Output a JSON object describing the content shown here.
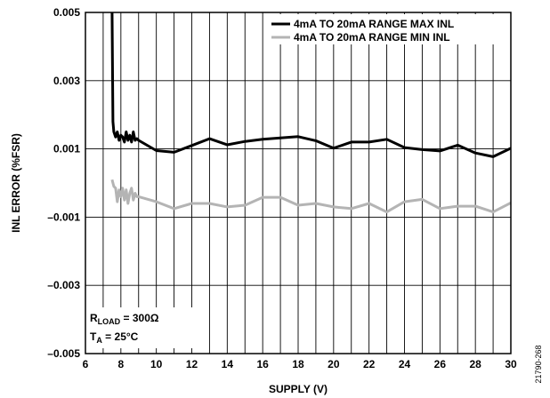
{
  "chart_data": {
    "type": "line",
    "xlabel": "SUPPLY (V)",
    "ylabel": "INL ERROR (%FSR)",
    "xlim": [
      6,
      30
    ],
    "ylim": [
      -0.005,
      0.005
    ],
    "x_ticks": [
      6,
      8,
      10,
      12,
      14,
      16,
      18,
      20,
      22,
      24,
      26,
      28,
      30
    ],
    "x_tick_labels": [
      "6",
      "8",
      "10",
      "12",
      "14",
      "16",
      "18",
      "20",
      "22",
      "24",
      "26",
      "28",
      "30"
    ],
    "y_ticks": [
      -0.005,
      -0.003,
      -0.001,
      0.001,
      0.003,
      0.005
    ],
    "y_tick_labels": [
      "–0.005",
      "–0.003",
      "–0.001",
      "0.001",
      "0.003",
      "0.005"
    ],
    "grid": true,
    "legend_position": "top-right",
    "series": [
      {
        "name": "4mA TO 20mA RANGE MAX INL",
        "color": "#000000",
        "x": [
          7.5,
          7.55,
          7.6,
          7.7,
          7.8,
          7.9,
          8.0,
          8.1,
          8.2,
          8.3,
          8.4,
          8.5,
          8.6,
          8.7,
          8.8,
          8.9,
          9.0,
          10,
          11,
          12,
          13,
          14,
          15,
          16,
          17,
          18,
          19,
          20,
          21,
          22,
          23,
          24,
          25,
          26,
          27,
          28,
          29,
          30
        ],
        "y": [
          0.0051,
          0.0018,
          0.0015,
          0.00135,
          0.0015,
          0.00125,
          0.0014,
          0.00135,
          0.0012,
          0.0015,
          0.00125,
          0.0014,
          0.0012,
          0.0015,
          0.00125,
          0.0013,
          0.00125,
          0.00095,
          0.0009,
          0.0011,
          0.0013,
          0.00112,
          0.00122,
          0.00128,
          0.00132,
          0.00136,
          0.00124,
          0.00102,
          0.0012,
          0.0012,
          0.00128,
          0.00104,
          0.00098,
          0.00094,
          0.00111,
          0.00088,
          0.00077,
          0.00102
        ]
      },
      {
        "name": "4mA TO 20mA RANGE MIN INL",
        "color": "#b4b4b4",
        "x": [
          7.5,
          7.6,
          7.7,
          7.8,
          7.9,
          8.0,
          8.1,
          8.2,
          8.3,
          8.4,
          8.5,
          8.6,
          8.7,
          8.8,
          8.9,
          9.0,
          10,
          11,
          12,
          13,
          14,
          15,
          16,
          17,
          18,
          19,
          20,
          21,
          22,
          23,
          24,
          25,
          26,
          27,
          28,
          29,
          30
        ],
        "y": [
          0.0001,
          -0.0001,
          -0.00015,
          -0.00055,
          -0.0002,
          -0.0004,
          -0.00015,
          -0.0005,
          -0.0002,
          -0.0006,
          -0.0003,
          -0.00015,
          -0.0005,
          -0.0003,
          -0.0004,
          -0.0004,
          -0.00055,
          -0.00075,
          -0.0006,
          -0.0006,
          -0.0007,
          -0.00065,
          -0.00042,
          -0.00042,
          -0.00065,
          -0.0006,
          -0.0007,
          -0.00075,
          -0.0006,
          -0.00085,
          -0.00055,
          -0.00048,
          -0.00075,
          -0.00068,
          -0.00068,
          -0.00085,
          -0.00058
        ]
      }
    ],
    "annotations": {
      "rload_main": "R",
      "rload_sub": "LOAD",
      "rload_rest": " = 300Ω",
      "ta_main": "T",
      "ta_sub": "A",
      "ta_rest": " = 25°C"
    },
    "figure_id": "21790-268"
  }
}
